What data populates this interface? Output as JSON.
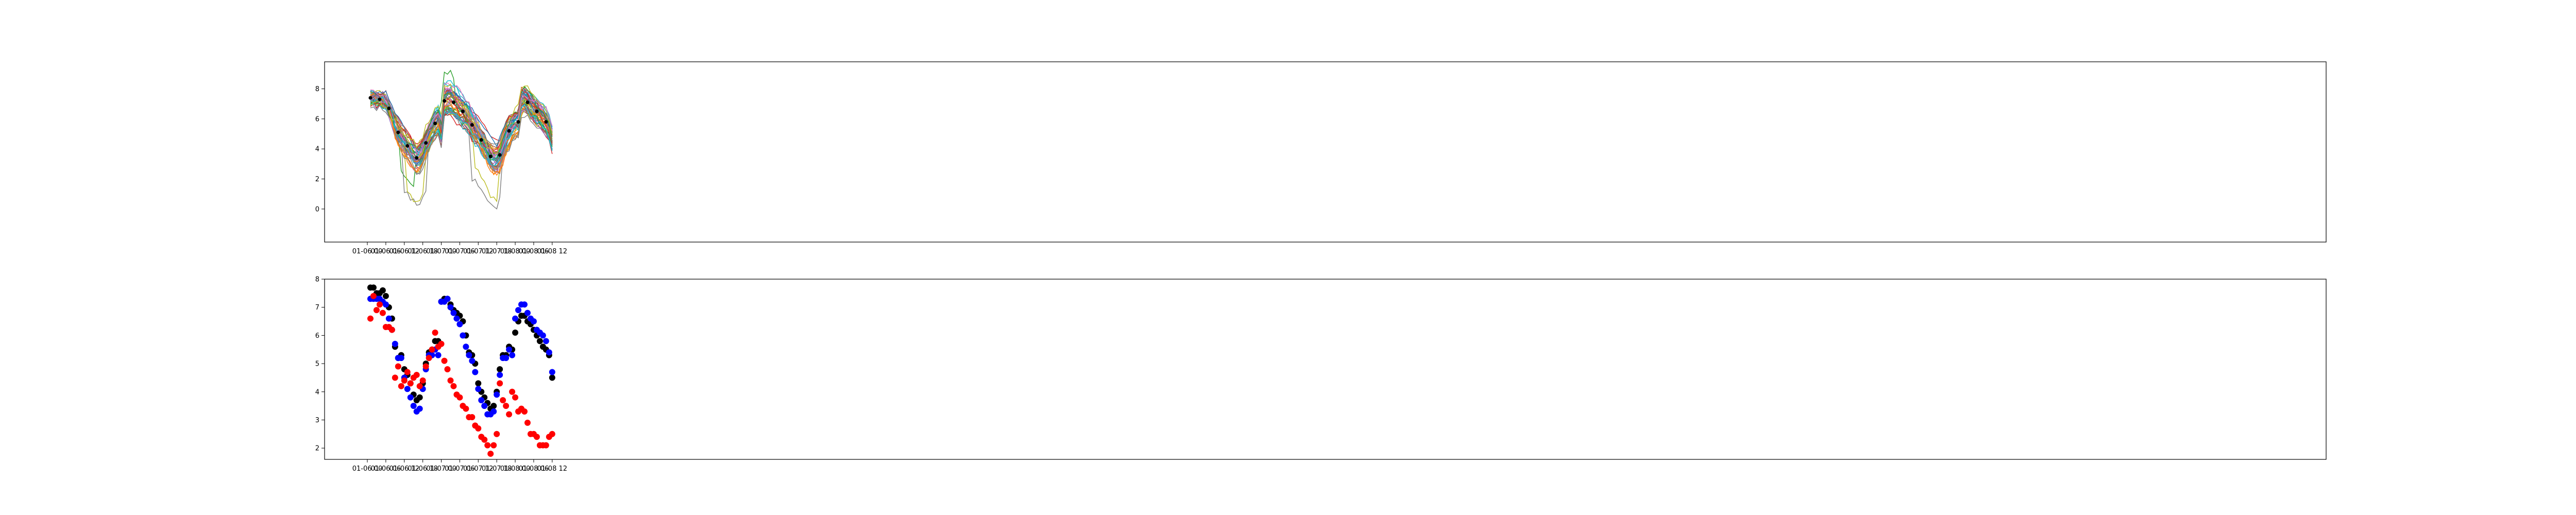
{
  "chart_data": [
    {
      "type": "line",
      "x_axis": {
        "type": "time",
        "start": "2024-01-06T00:00",
        "end": "2024-01-08T12:00",
        "ticks": [
          "01-06 00",
          "01-06 06",
          "01-06 12",
          "01-06 18",
          "01-07 00",
          "01-07 06",
          "01-07 12",
          "01-07 18",
          "01-08 00",
          "01-08 06",
          "01-08 12"
        ]
      },
      "y_axis": {
        "ticks": [
          0,
          2,
          4,
          6,
          8
        ],
        "ylim": [
          -2.2,
          9.8
        ]
      },
      "x_hours": [
        1,
        2,
        3,
        4,
        5,
        6,
        7,
        8,
        9,
        10,
        11,
        12,
        13,
        14,
        15,
        16,
        17,
        18,
        19,
        20,
        21,
        22,
        23,
        24,
        25,
        26,
        27,
        28,
        29,
        30,
        31,
        32,
        33,
        34,
        35,
        36,
        37,
        38,
        39,
        40,
        41,
        42,
        43,
        44,
        45,
        46,
        47,
        48,
        49,
        50,
        51,
        52,
        53,
        54,
        55,
        56,
        57,
        58,
        59,
        60
      ],
      "ensemble_base": [
        7.4,
        7.4,
        7.3,
        7.3,
        7.2,
        7.1,
        6.7,
        6.2,
        5.6,
        5.1,
        4.8,
        4.5,
        4.2,
        3.9,
        3.6,
        3.4,
        3.5,
        3.9,
        4.4,
        4.9,
        5.3,
        5.7,
        5.9,
        5.2,
        7.2,
        7.3,
        7.3,
        7.1,
        6.9,
        6.7,
        6.5,
        6.3,
        6.0,
        5.6,
        5.3,
        5.0,
        4.6,
        4.2,
        3.9,
        3.5,
        3.3,
        3.3,
        3.6,
        4.2,
        4.8,
        5.2,
        5.5,
        5.7,
        5.8,
        7.2,
        7.3,
        7.1,
        6.9,
        6.7,
        6.5,
        6.3,
        6.1,
        5.8,
        5.4,
        4.7
      ],
      "ensemble_members": 50,
      "ensemble_colors": [
        "#1f77b4",
        "#ff7f0e",
        "#2ca02c",
        "#d62728",
        "#9467bd",
        "#8c564b",
        "#e377c2",
        "#7f7f7f",
        "#bcbd22",
        "#17becf"
      ],
      "mean_markers_color": "#000000"
    },
    {
      "type": "scatter",
      "x_axis": {
        "type": "time",
        "start": "2024-01-06T00:00",
        "end": "2024-01-08T12:00",
        "ticks": [
          "01-06 00",
          "01-06 06",
          "01-06 12",
          "01-06 18",
          "01-07 00",
          "01-07 06",
          "01-07 12",
          "01-07 18",
          "01-08 00",
          "01-08 06",
          "01-08 12"
        ]
      },
      "y_axis": {
        "ticks": [
          2,
          3,
          4,
          5,
          6,
          7,
          8
        ],
        "ylim": [
          1.6,
          8.0
        ]
      },
      "x_hours": [
        1,
        2,
        3,
        4,
        5,
        6,
        7,
        8,
        9,
        10,
        11,
        12,
        13,
        14,
        15,
        16,
        17,
        18,
        19,
        20,
        21,
        22,
        23,
        24,
        25,
        26,
        27,
        28,
        29,
        30,
        31,
        32,
        33,
        34,
        35,
        36,
        37,
        38,
        39,
        40,
        41,
        42,
        43,
        44,
        45,
        46,
        47,
        48,
        49,
        50,
        51,
        52,
        53,
        54,
        55,
        56,
        57,
        58,
        59,
        60
      ],
      "series": [
        {
          "color": "#000000",
          "values": [
            7.7,
            7.7,
            7.5,
            7.5,
            7.6,
            7.4,
            7.0,
            6.6,
            5.6,
            5.2,
            5.3,
            4.8,
            4.6,
            4.3,
            3.9,
            3.7,
            3.8,
            4.3,
            5.0,
            5.4,
            5.5,
            5.8,
            5.8,
            7.2,
            7.3,
            7.3,
            7.1,
            6.9,
            6.8,
            6.7,
            6.5,
            6.0,
            5.4,
            5.3,
            5.0,
            4.3,
            4.0,
            3.8,
            3.6,
            3.4,
            3.5,
            4.0,
            4.8,
            5.3,
            5.3,
            5.6,
            5.5,
            6.1,
            6.5,
            6.7,
            6.7,
            6.5,
            6.4,
            6.2,
            6.0,
            5.8,
            5.6,
            5.5,
            5.3,
            4.5
          ]
        },
        {
          "color": "#0000ff",
          "values": [
            7.3,
            7.3,
            7.3,
            7.3,
            7.2,
            7.1,
            6.6,
            6.2,
            5.7,
            5.2,
            5.2,
            4.5,
            4.1,
            3.8,
            3.5,
            3.3,
            3.4,
            4.1,
            4.8,
            5.3,
            5.3,
            5.5,
            5.3,
            7.2,
            7.2,
            7.3,
            7.0,
            6.8,
            6.6,
            6.4,
            6.0,
            5.6,
            5.3,
            5.1,
            4.7,
            4.1,
            3.7,
            3.5,
            3.2,
            3.2,
            3.3,
            3.9,
            4.6,
            5.2,
            5.2,
            5.5,
            5.3,
            6.6,
            6.9,
            7.1,
            7.1,
            6.8,
            6.6,
            6.5,
            6.2,
            6.1,
            6.0,
            5.8,
            5.4,
            4.7
          ]
        },
        {
          "color": "#ff0000",
          "values": [
            6.6,
            7.4,
            6.9,
            7.1,
            6.8,
            6.3,
            6.3,
            6.2,
            4.5,
            4.9,
            4.2,
            4.4,
            4.7,
            4.3,
            4.5,
            4.6,
            4.2,
            4.4,
            4.9,
            5.2,
            5.5,
            6.1,
            5.6,
            5.7,
            5.1,
            4.8,
            4.4,
            4.2,
            3.9,
            3.8,
            3.5,
            3.4,
            3.1,
            3.1,
            2.8,
            2.7,
            2.4,
            2.3,
            2.1,
            1.8,
            2.1,
            2.5,
            4.3,
            3.7,
            3.5,
            3.2,
            4.0,
            3.8,
            3.3,
            3.4,
            3.3,
            2.9,
            2.5,
            2.5,
            2.4,
            2.1,
            2.1,
            2.1,
            2.4,
            2.5
          ]
        }
      ]
    }
  ]
}
